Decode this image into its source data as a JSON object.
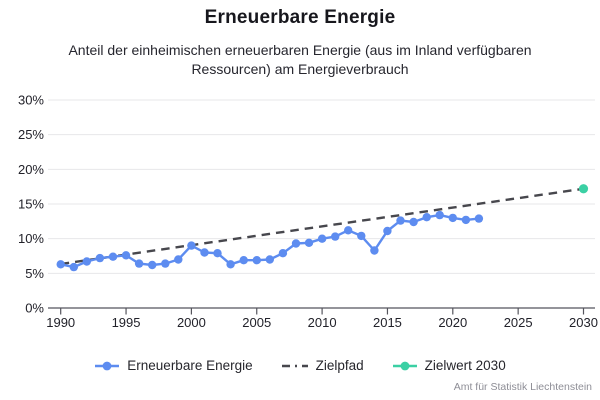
{
  "header": {
    "title": "Erneuerbare Energie",
    "subtitle": "Anteil der einheimischen erneuerbaren Energie (aus im Inland verfügbaren Ressourcen) am Energieverbrauch"
  },
  "chart_data": {
    "type": "line",
    "title": "Erneuerbare Energie",
    "subtitle": "Anteil der einheimischen erneuerbaren Energie (aus im Inland verfügbaren Ressourcen) am Energieverbrauch",
    "xlabel": "",
    "ylabel": "",
    "xlim": [
      1989,
      2031
    ],
    "ylim": [
      0,
      30
    ],
    "x_ticks": [
      1990,
      1995,
      2000,
      2005,
      2010,
      2015,
      2020,
      2025,
      2030
    ],
    "y_ticks_percent": [
      0,
      5,
      10,
      15,
      20,
      25,
      30
    ],
    "y_tick_labels": [
      "0%",
      "5%",
      "10%",
      "15%",
      "20%",
      "25%",
      "30%"
    ],
    "grid": "horizontal",
    "legend_position": "bottom",
    "series": [
      {
        "name": "Erneuerbare Energie",
        "style": "line-with-markers",
        "color": "#5d8cf0",
        "x": [
          1990,
          1991,
          1992,
          1993,
          1994,
          1995,
          1996,
          1997,
          1998,
          1999,
          2000,
          2001,
          2002,
          2003,
          2004,
          2005,
          2006,
          2007,
          2008,
          2009,
          2010,
          2011,
          2012,
          2013,
          2014,
          2015,
          2016,
          2017,
          2018,
          2019,
          2020,
          2021,
          2022
        ],
        "values": [
          6.3,
          5.9,
          6.7,
          7.2,
          7.4,
          7.6,
          6.4,
          6.2,
          6.4,
          7.0,
          9.0,
          8.0,
          7.9,
          6.3,
          6.9,
          6.9,
          7.0,
          7.9,
          9.3,
          9.4,
          10.0,
          10.3,
          11.2,
          10.4,
          8.3,
          11.1,
          12.6,
          12.4,
          13.1,
          13.4,
          13.0,
          12.7,
          12.9
        ]
      },
      {
        "name": "Zielpfad",
        "style": "dashed-line",
        "color": "#47474d",
        "x": [
          1990,
          2030
        ],
        "values": [
          6.35,
          17.2
        ]
      },
      {
        "name": "Zielwert 2030",
        "style": "point",
        "color": "#3bd0a4",
        "x": [
          2030
        ],
        "values": [
          17.2
        ]
      }
    ]
  },
  "legend": {
    "items": [
      {
        "label": "Erneuerbare Energie",
        "color": "#5d8cf0",
        "marker": "line-dot"
      },
      {
        "label": "Zielpfad",
        "color": "#47474d",
        "marker": "dash-dot-line"
      },
      {
        "label": "Zielwert 2030",
        "color": "#3bd0a4",
        "marker": "line-dot"
      }
    ]
  },
  "footer": {
    "attribution": "Amt für Statistik Liechtenstein"
  },
  "colors": {
    "series_blue": "#5d8cf0",
    "target_path_gray": "#47474d",
    "target_teal": "#3bd0a4",
    "gridline": "#e7e7e9",
    "axis": "#55555d",
    "tick_label": "#22222a",
    "title_text": "#17171d",
    "attribution_text": "#8e8e96",
    "background": "#ffffff"
  }
}
